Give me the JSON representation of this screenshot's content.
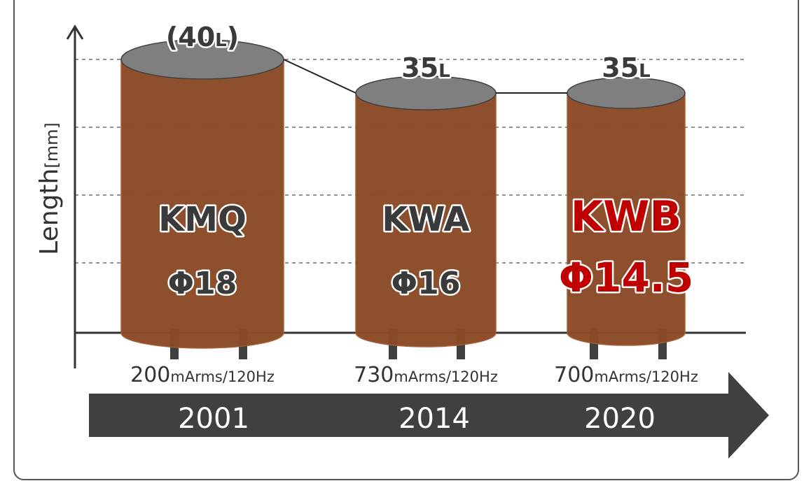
{
  "axis_label": {
    "main": "Length",
    "unit": "[mm]"
  },
  "items": [
    {
      "length": [
        "(40",
        "L",
        ")"
      ],
      "model": "KMQ",
      "diameter": "Φ18",
      "current": "200",
      "current_unit": "mArms/120Hz",
      "year": "2001"
    },
    {
      "length": [
        "35",
        "L"
      ],
      "model": "KWA",
      "diameter": "Φ16",
      "current": "730",
      "current_unit": "mArms/120Hz",
      "year": "2014"
    },
    {
      "length": [
        "35",
        "L"
      ],
      "model": "KWB",
      "diameter": "Φ14.5",
      "current": "700",
      "current_unit": "mArms/120Hz",
      "year": "2020"
    }
  ]
}
